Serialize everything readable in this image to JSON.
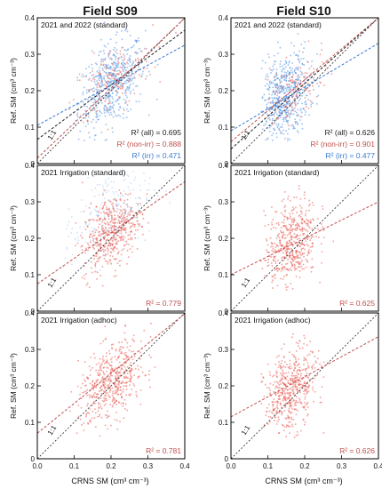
{
  "figure": {
    "col_titles": [
      "Field S09",
      "Field S10"
    ],
    "ylabel": "Ref. SM (cm³ cm⁻³)",
    "xlabel": "CRNS SM (cm³ cm⁻³)",
    "one_to_one": "1:1"
  },
  "colors": {
    "all": "#222222",
    "nonirr": "#c0504d",
    "irr": "#3a7bd5",
    "scatter_red": "#e8584f",
    "scatter_blue": "#4a90e2",
    "scatter_tan": "#c9a27a"
  },
  "chart_data": [
    {
      "type": "scatter",
      "field": "Field S09",
      "row": 0,
      "title": "2021 and 2022 (standard)",
      "xlim": [
        0,
        0.4
      ],
      "ylim": [
        0,
        0.4
      ],
      "xticks": [
        "0.0",
        "0.1",
        "0.2",
        "0.3",
        "0.4"
      ],
      "yticks": [
        "0",
        "0.1",
        "0.2",
        "0.3",
        "0.4"
      ],
      "show_xticklabels": false,
      "clouds": [
        {
          "color": "irr",
          "cx": 0.2,
          "cy": 0.22,
          "sx": 0.045,
          "sy": 0.055,
          "n": 520,
          "xmin": 0.1,
          "xmax": 0.38
        },
        {
          "color": "nonirr",
          "cx": 0.2,
          "cy": 0.23,
          "sx": 0.055,
          "sy": 0.045,
          "n": 160,
          "xmin": 0.08,
          "xmax": 0.38
        }
      ],
      "fits": [
        {
          "key": "all",
          "label": "R² (all) = 0.695",
          "slope": 0.75,
          "intercept": 0.066
        },
        {
          "key": "nonirr",
          "label": "R² (non-irr) = 0.888",
          "slope": 0.96,
          "intercept": 0.015
        },
        {
          "key": "irr",
          "label": "R² (irr) = 0.471",
          "slope": 0.55,
          "intercept": 0.105
        }
      ]
    },
    {
      "type": "scatter",
      "field": "Field S10",
      "row": 0,
      "title": "2021 and 2022 (standard)",
      "xlim": [
        0,
        0.4
      ],
      "ylim": [
        0,
        0.4
      ],
      "xticks": [
        "0.0",
        "0.1",
        "0.2",
        "0.3",
        "0.4"
      ],
      "yticks": [
        "0",
        "0.1",
        "0.2",
        "0.3",
        "0.4"
      ],
      "show_xticklabels": false,
      "clouds": [
        {
          "color": "irr",
          "cx": 0.14,
          "cy": 0.18,
          "sx": 0.035,
          "sy": 0.06,
          "n": 600,
          "xmin": 0.08,
          "xmax": 0.3
        },
        {
          "color": "nonirr",
          "cx": 0.17,
          "cy": 0.2,
          "sx": 0.045,
          "sy": 0.04,
          "n": 150,
          "xmin": 0.09,
          "xmax": 0.28
        }
      ],
      "fits": [
        {
          "key": "all",
          "label": "R² (all) = 0.626",
          "slope": 0.9,
          "intercept": 0.04
        },
        {
          "key": "nonirr",
          "label": "R² (non-irr) = 0.901",
          "slope": 0.85,
          "intercept": 0.06
        },
        {
          "key": "irr",
          "label": "R² (irr) = 0.477",
          "slope": 0.6,
          "intercept": 0.09
        }
      ]
    },
    {
      "type": "scatter",
      "field": "Field S09",
      "row": 1,
      "title": "2021 Irrigation (standard)",
      "xlim": [
        0,
        0.4
      ],
      "ylim": [
        0,
        0.4
      ],
      "xticks": [
        "0.0",
        "0.1",
        "0.2",
        "0.3",
        "0.4"
      ],
      "yticks": [
        "0",
        "0.1",
        "0.2",
        "0.3",
        "0.4"
      ],
      "show_xticklabels": false,
      "clouds": [
        {
          "color": "irr_faint",
          "cx": 0.19,
          "cy": 0.27,
          "sx": 0.06,
          "sy": 0.06,
          "n": 260,
          "xmin": 0.05,
          "xmax": 0.36
        },
        {
          "color": "red",
          "cx": 0.2,
          "cy": 0.22,
          "sx": 0.04,
          "sy": 0.05,
          "n": 480,
          "xmin": 0.08,
          "xmax": 0.3
        }
      ],
      "fits": [
        {
          "key": "nonirr",
          "label": "R² = 0.779",
          "slope": 0.7,
          "intercept": 0.075
        }
      ]
    },
    {
      "type": "scatter",
      "field": "Field S10",
      "row": 1,
      "title": "2021 Irrigation (standard)",
      "xlim": [
        0,
        0.4
      ],
      "ylim": [
        0,
        0.4
      ],
      "xticks": [
        "0.0",
        "0.1",
        "0.2",
        "0.3",
        "0.4"
      ],
      "yticks": [
        "0",
        "0.1",
        "0.2",
        "0.3",
        "0.4"
      ],
      "show_xticklabels": false,
      "clouds": [
        {
          "color": "red",
          "cx": 0.16,
          "cy": 0.19,
          "sx": 0.035,
          "sy": 0.06,
          "n": 520,
          "xmin": 0.08,
          "xmax": 0.3
        }
      ],
      "fits": [
        {
          "key": "nonirr",
          "label": "R² = 0.625",
          "slope": 0.5,
          "intercept": 0.1
        }
      ]
    },
    {
      "type": "scatter",
      "field": "Field S09",
      "row": 2,
      "title": "2021 Irrigation (adhoc)",
      "xlim": [
        0,
        0.4
      ],
      "ylim": [
        0,
        0.4
      ],
      "xticks": [
        "0.0",
        "0.1",
        "0.2",
        "0.3",
        "0.4"
      ],
      "yticks": [
        "0",
        "0.1",
        "0.2",
        "0.3",
        "0.4"
      ],
      "show_xticklabels": true,
      "clouds": [
        {
          "color": "red",
          "cx": 0.2,
          "cy": 0.21,
          "sx": 0.045,
          "sy": 0.05,
          "n": 520,
          "xmin": 0.08,
          "xmax": 0.32
        }
      ],
      "fits": [
        {
          "key": "nonirr",
          "label": "R² = 0.781",
          "slope": 0.82,
          "intercept": 0.07
        }
      ]
    },
    {
      "type": "scatter",
      "field": "Field S10",
      "row": 2,
      "title": "2021 Irrigation (adhoc)",
      "xlim": [
        0,
        0.4
      ],
      "ylim": [
        0,
        0.4
      ],
      "xticks": [
        "0.0",
        "0.1",
        "0.2",
        "0.3",
        "0.4"
      ],
      "yticks": [
        "0",
        "0.1",
        "0.2",
        "0.3",
        "0.4"
      ],
      "show_xticklabels": true,
      "clouds": [
        {
          "color": "red",
          "cx": 0.16,
          "cy": 0.19,
          "sx": 0.035,
          "sy": 0.055,
          "n": 520,
          "xmin": 0.08,
          "xmax": 0.3
        }
      ],
      "fits": [
        {
          "key": "nonirr",
          "label": "R² = 0.626",
          "slope": 0.55,
          "intercept": 0.115
        }
      ]
    }
  ]
}
